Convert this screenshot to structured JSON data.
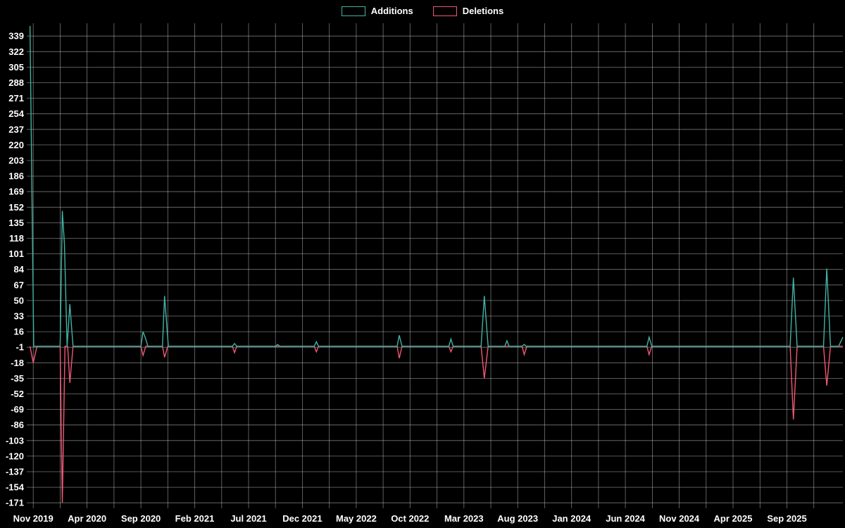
{
  "legend": {
    "items": [
      {
        "label": "Additions",
        "color": "#41b3a3"
      },
      {
        "label": "Deletions",
        "color": "#ef5874"
      }
    ]
  },
  "chart_data": {
    "type": "line",
    "title": "",
    "background": "#000000",
    "grid": true,
    "legend_position": "top-center",
    "x_axis": {
      "unit": "months since Nov 2019",
      "range": [
        -0.6,
        75.2
      ],
      "tick_positions": [
        0,
        5,
        10,
        15,
        20,
        25,
        30,
        35,
        40,
        45,
        50,
        55,
        60,
        65,
        70
      ],
      "tick_labels": [
        "Nov 2019",
        "Apr 2020",
        "Sep 2020",
        "Feb 2021",
        "Jul 2021",
        "Dec 2021",
        "May 2022",
        "Oct 2022",
        "Mar 2023",
        "Aug 2023",
        "Jan 2024",
        "Jun 2024",
        "Nov 2024",
        "Apr 2025",
        "Sep 2025"
      ],
      "minor_grid_step": 2.5
    },
    "y_axis": {
      "range": [
        -177,
        353
      ],
      "tick_values": [
        339,
        322,
        305,
        288,
        271,
        254,
        237,
        220,
        203,
        186,
        169,
        152,
        135,
        118,
        101,
        84,
        67,
        50,
        33,
        16,
        -1,
        -18,
        -35,
        -52,
        -69,
        -86,
        -103,
        -120,
        -137,
        -154,
        -171
      ]
    },
    "series": [
      {
        "name": "Additions",
        "color": "#41b3a3",
        "points": [
          [
            -0.3,
            350
          ],
          [
            0.05,
            0
          ],
          [
            2.5,
            0
          ],
          [
            2.7,
            148
          ],
          [
            2.9,
            112
          ],
          [
            3.15,
            0
          ],
          [
            3.4,
            46
          ],
          [
            3.7,
            0
          ],
          [
            10.0,
            0
          ],
          [
            10.2,
            16
          ],
          [
            10.45,
            8
          ],
          [
            10.65,
            0
          ],
          [
            12.0,
            0
          ],
          [
            12.2,
            55
          ],
          [
            12.55,
            0
          ],
          [
            18.5,
            0
          ],
          [
            18.7,
            3
          ],
          [
            18.9,
            0
          ],
          [
            22.5,
            0
          ],
          [
            22.7,
            2
          ],
          [
            22.9,
            0
          ],
          [
            26.1,
            0
          ],
          [
            26.3,
            5
          ],
          [
            26.5,
            0
          ],
          [
            33.8,
            0
          ],
          [
            34.0,
            12
          ],
          [
            34.25,
            0
          ],
          [
            38.6,
            0
          ],
          [
            38.8,
            8
          ],
          [
            39.0,
            0
          ],
          [
            41.6,
            0
          ],
          [
            41.9,
            55
          ],
          [
            42.25,
            0
          ],
          [
            43.8,
            0
          ],
          [
            44.0,
            6
          ],
          [
            44.2,
            0
          ],
          [
            45.4,
            0
          ],
          [
            45.6,
            2
          ],
          [
            45.8,
            0
          ],
          [
            57.0,
            0
          ],
          [
            57.2,
            10
          ],
          [
            57.45,
            0
          ],
          [
            70.3,
            0
          ],
          [
            70.6,
            75
          ],
          [
            70.95,
            0
          ],
          [
            73.4,
            0
          ],
          [
            73.7,
            85
          ],
          [
            74.05,
            0
          ],
          [
            74.8,
            0
          ],
          [
            75.2,
            10
          ]
        ]
      },
      {
        "name": "Deletions",
        "color": "#ef5874",
        "points": [
          [
            -0.3,
            0
          ],
          [
            0.0,
            -18
          ],
          [
            0.35,
            0
          ],
          [
            2.5,
            0
          ],
          [
            2.7,
            -171
          ],
          [
            2.95,
            0
          ],
          [
            3.2,
            0
          ],
          [
            3.4,
            -40
          ],
          [
            3.7,
            0
          ],
          [
            10.0,
            0
          ],
          [
            10.2,
            -10
          ],
          [
            10.45,
            0
          ],
          [
            12.0,
            0
          ],
          [
            12.2,
            -12
          ],
          [
            12.5,
            0
          ],
          [
            18.5,
            0
          ],
          [
            18.7,
            -7
          ],
          [
            18.9,
            0
          ],
          [
            26.1,
            0
          ],
          [
            26.3,
            -6
          ],
          [
            26.5,
            0
          ],
          [
            33.8,
            0
          ],
          [
            34.0,
            -13
          ],
          [
            34.25,
            0
          ],
          [
            38.6,
            0
          ],
          [
            38.8,
            -6
          ],
          [
            39.0,
            0
          ],
          [
            41.6,
            0
          ],
          [
            41.9,
            -35
          ],
          [
            42.25,
            0
          ],
          [
            45.4,
            0
          ],
          [
            45.6,
            -9
          ],
          [
            45.85,
            0
          ],
          [
            57.0,
            0
          ],
          [
            57.2,
            -9
          ],
          [
            57.45,
            0
          ],
          [
            70.3,
            0
          ],
          [
            70.6,
            -80
          ],
          [
            70.95,
            0
          ],
          [
            73.4,
            0
          ],
          [
            73.7,
            -43
          ],
          [
            74.05,
            0
          ],
          [
            75.2,
            0
          ]
        ]
      }
    ]
  }
}
